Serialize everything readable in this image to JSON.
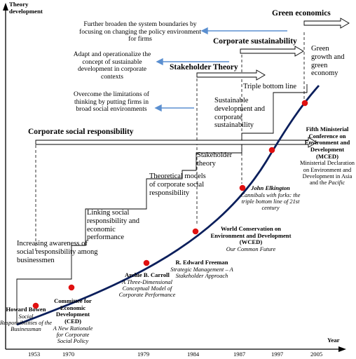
{
  "axes": {
    "y_label": "Theory\ndevelopment",
    "x_label": "Year",
    "years": [
      "1953",
      "1970",
      "1979",
      "1984",
      "1987",
      "1997",
      "2005"
    ]
  },
  "theories": {
    "csr": "Corporate social responsibility",
    "stakeholder": "Stakeholder Theory",
    "sustainability": "Corporate sustainability",
    "green": "Green economics"
  },
  "goals": {
    "g1": "Further broaden the system boundaries by focusing on changing the policy environment for firms",
    "g2": "Adapt and operationalize the concept of sustainable development in corporate contexts",
    "g3": "Overcome the limitations of thinking by putting firms in broad social environments"
  },
  "stages": {
    "s1": "Increasing awareness of social responsibility among businessmen",
    "s2": "Linking social responsibility and economic performance",
    "s3": "Theoretical models of corporate social responsibility",
    "s4": "Stakeholder theory",
    "s5": "Sustainable development and corporate sustainability",
    "s6": "Triple bottom line",
    "s7": "Green growth and green economy"
  },
  "milestones": {
    "bowen": {
      "name": "Howard Bowen",
      "work": "Social Responsibilities of the Businessman"
    },
    "ced": {
      "name": "Committee for Economic Development (CED)",
      "work": "A New Rationale for Corporate Social Policy"
    },
    "carroll": {
      "name": "Archie B. Carroll",
      "work": "A Three-Dimensional Conceptual Model of Corporate Performance"
    },
    "freeman": {
      "name": "R. Edward Freeman",
      "work": "Strategic Management – A Stakeholder Approach"
    },
    "wced": {
      "name": "World Conservation on Environment and Development (WCED)",
      "work": "Our Common Future"
    },
    "elkington": {
      "name": "John Elkington",
      "work": "Cannibals with forks: the triple bottom line of 21st century"
    },
    "mced": {
      "name": "Fifth Ministerial Conference on Environment and Development (MCED)",
      "work1": "Ministerial Declaration on Environment and Development in Asia and the ",
      "work2": "Pacific"
    }
  },
  "colors": {
    "curve": "#0b1f5c",
    "dot": "#e01010",
    "goal_arrow": "#5b8fd0"
  }
}
